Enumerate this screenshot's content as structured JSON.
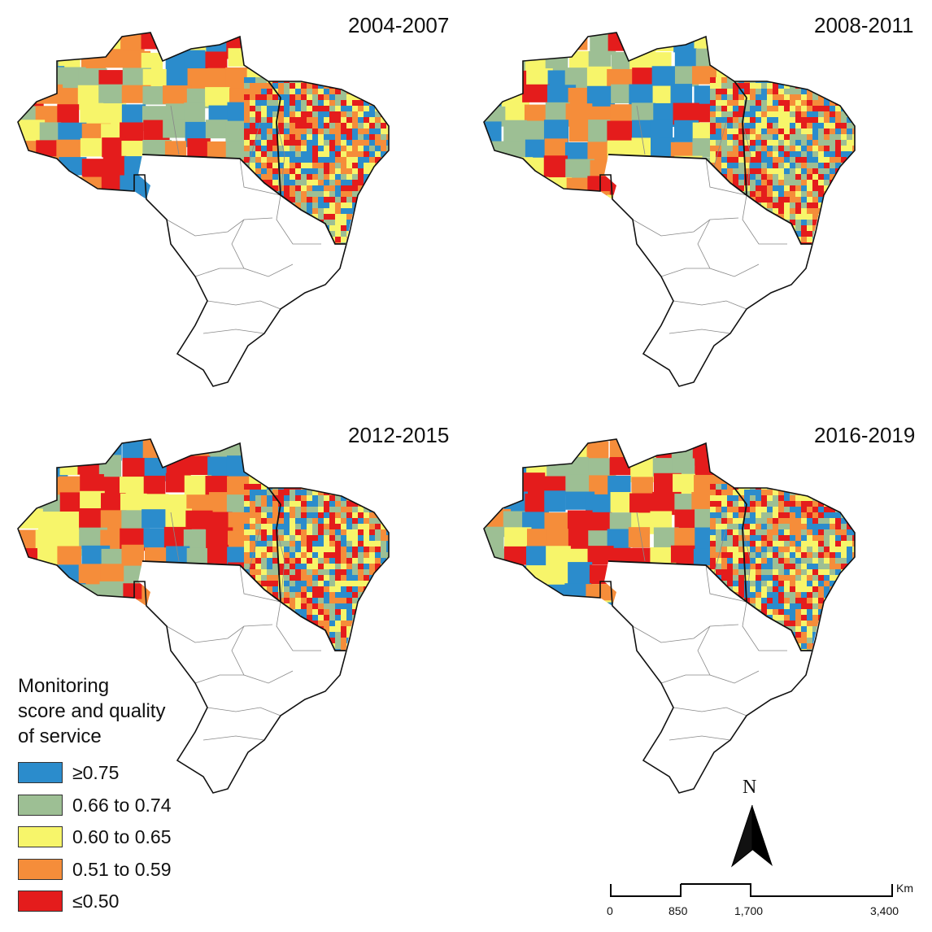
{
  "panels": [
    {
      "period": "2004-2007"
    },
    {
      "period": "2008-2011"
    },
    {
      "period": "2012-2015"
    },
    {
      "period": "2016-2019"
    }
  ],
  "legend": {
    "title_lines": [
      "Monitoring",
      "score and quality",
      "of service"
    ],
    "items": [
      {
        "label": "≥0.75",
        "color": "#2b8ccc"
      },
      {
        "label": "0.66 to 0.74",
        "color": "#9dbf94"
      },
      {
        "label": "0.60 to 0.65",
        "color": "#f7f56a"
      },
      {
        "label": "0.51 to 0.59",
        "color": "#f58d3a"
      },
      {
        "label": "≤0.50",
        "color": "#e41c1c"
      }
    ]
  },
  "north_arrow": {
    "label": "N"
  },
  "scale_bar": {
    "unit": "Km",
    "ticks": [
      "0",
      "850",
      "1,700",
      "3,400"
    ]
  }
}
